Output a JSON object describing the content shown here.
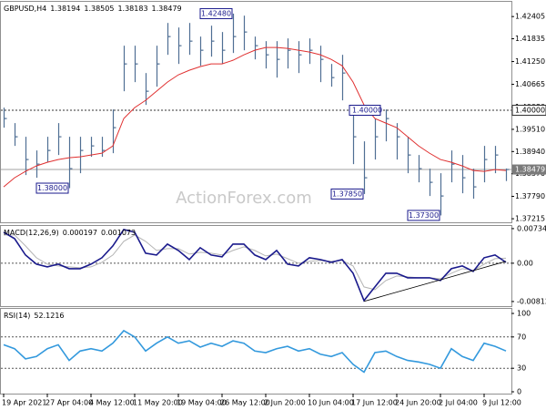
{
  "chart_data": [
    {
      "type": "hlc",
      "label": "GBPUSD,H4",
      "readout": [
        1.38194,
        1.38505,
        1.38183,
        1.38479
      ],
      "watermark": "ActionForex.com",
      "color": "#4f6f94",
      "ylim": [
        1.371,
        1.4283
      ],
      "yticks": [
        1.42405,
        1.41835,
        {
          "value": 1.4125,
          "label": "1.41250"
        },
        1.40665,
        {
          "value": 1.4008,
          "label": "1.40080"
        },
        {
          "value": 1.3951,
          "label": "1.39510"
        },
        {
          "value": 1.3894,
          "label": "1.38940"
        },
        {
          "value": 1.3837,
          "label": "1.38370"
        },
        {
          "value": 1.3779,
          "label": "1.37790"
        },
        1.37215
      ],
      "high": [
        1.40067,
        1.3967,
        1.39319,
        1.38968,
        1.39319,
        1.3967,
        1.39319,
        1.39319,
        1.39319,
        1.39319,
        1.4002,
        1.41657,
        1.41657,
        1.40955,
        1.41657,
        1.42241,
        1.42124,
        1.42241,
        1.41891,
        1.42171,
        1.42008,
        1.4248,
        1.42428,
        1.41891,
        1.41774,
        1.41774,
        1.41844,
        1.41774,
        1.41844,
        1.41657,
        1.41189,
        1.41423,
        1.4002,
        1.39202,
        1.39787,
        1.4002,
        1.3967,
        1.39319,
        1.38851,
        1.38501,
        1.38384,
        1.38968,
        1.38851,
        1.38501,
        1.39085,
        1.39085,
        1.38505
      ],
      "low": [
        1.39553,
        1.39085,
        1.38337,
        1.38267,
        1.38664,
        1.38851,
        1.38,
        1.38384,
        1.38805,
        1.38805,
        1.38898,
        1.40488,
        1.40722,
        1.40137,
        1.40605,
        1.41423,
        1.41189,
        1.41423,
        1.41142,
        1.41376,
        1.41189,
        1.4147,
        1.4154,
        1.41306,
        1.41072,
        1.40838,
        1.41072,
        1.40955,
        1.41189,
        1.40722,
        1.40605,
        1.40254,
        1.38617,
        1.3785,
        1.38735,
        1.39202,
        1.38735,
        1.38384,
        1.3815,
        1.37799,
        1.373,
        1.3815,
        1.37869,
        1.37729,
        1.3815,
        1.38384,
        1.38183
      ],
      "close": [
        1.39787,
        1.39319,
        1.38735,
        1.38617,
        1.38968,
        1.39319,
        1.38501,
        1.38968,
        1.39085,
        1.38968,
        1.39553,
        1.41189,
        1.41189,
        1.40488,
        1.41189,
        1.41891,
        1.41657,
        1.41774,
        1.4154,
        1.41774,
        1.4154,
        1.41891,
        1.42008,
        1.41657,
        1.41423,
        1.41306,
        1.4154,
        1.41423,
        1.4154,
        1.41306,
        1.40838,
        1.40955,
        1.39319,
        1.38267,
        1.39319,
        1.39787,
        1.39319,
        1.38851,
        1.38501,
        1.3815,
        1.37799,
        1.38617,
        1.38267,
        1.38033,
        1.38735,
        1.38851,
        1.38479
      ],
      "ma": {
        "color": "#e03030",
        "values": [
          1.38033,
          1.38267,
          1.38431,
          1.38571,
          1.38664,
          1.38735,
          1.38781,
          1.38805,
          1.38851,
          1.38898,
          1.39085,
          1.39787,
          1.40067,
          1.40254,
          1.40488,
          1.40722,
          1.40909,
          1.41026,
          1.41119,
          1.41189,
          1.41189,
          1.41283,
          1.41423,
          1.4154,
          1.4161,
          1.4161,
          1.41587,
          1.4154,
          1.41493,
          1.41423,
          1.41306,
          1.41142,
          1.40722,
          1.40137,
          1.39787,
          1.3967,
          1.39553,
          1.39319,
          1.39085,
          1.38898,
          1.38735,
          1.38664,
          1.38571,
          1.38454,
          1.38431,
          1.38477,
          1.38454
        ]
      },
      "hline": {
        "value": 1.4,
        "label": "1.40000"
      },
      "current": 1.38479,
      "annotations": [
        {
          "value": 1.4248,
          "label": "1.42480"
        },
        {
          "value": 1.38,
          "label": "1.38000"
        },
        {
          "value": 1.3785,
          "label": "1.37850"
        },
        {
          "value": 1.373,
          "label": "1.37300"
        }
      ]
    },
    {
      "type": "line",
      "label": "MACD(12,26,9)",
      "readout": [
        0.000197,
        0.001073
      ],
      "ylim": [
        -0.0093,
        0.0081
      ],
      "yticks": [
        0.007342,
        {
          "value": 0,
          "label": "0.00"
        },
        -0.008126
      ],
      "levels": [
        0
      ],
      "series": [
        {
          "color": "#1a1a8c",
          "values": [
            0.006576,
            0.005222,
            0.001741,
            -0.000193,
            -0.000774,
            -0.000193,
            -0.00116,
            -0.00116,
            -0.000193,
            0.00116,
            0.003675,
            0.007156,
            0.006576,
            0.002127,
            0.001741,
            0.004061,
            0.002708,
            0.000774,
            0.003288,
            0.001741,
            0.001354,
            0.004061,
            0.004061,
            0.001741,
            0.000774,
            0.002708,
            -0.000193,
            -0.00058,
            0.00116,
            0.000774,
            0.000193,
            0.000774,
            -0.002127,
            -0.007929,
            -0.005028,
            -0.002127,
            -0.002127,
            -0.003094,
            -0.003094,
            -0.003094,
            -0.003675,
            -0.00116,
            -0.00058,
            -0.001741,
            0.00116,
            0.001741,
            0.000197
          ]
        },
        {
          "color": "#b4b4b4",
          "values": [
            0.005995,
            0.005995,
            0.003675,
            0.00116,
            -0.000193,
            -0.00058,
            -0.000774,
            -0.000967,
            -0.000774,
            0.000193,
            0.001741,
            0.004642,
            0.005995,
            0.004642,
            0.002708,
            0.003094,
            0.003094,
            0.001934,
            0.002321,
            0.002127,
            0.001741,
            0.002708,
            0.003481,
            0.002708,
            0.001547,
            0.001934,
            0.000967,
            0,
            0.000387,
            0.00058,
            0.000387,
            0.00058,
            -0.00058,
            -0.005028,
            -0.005609,
            -0.003675,
            -0.002708,
            -0.002901,
            -0.003094,
            -0.003094,
            -0.003288,
            -0.002127,
            -0.00116,
            -0.001547,
            -0.000193,
            0.000967,
            0.001073
          ]
        }
      ],
      "trendline": {
        "color": "#000000",
        "values": [
          null,
          null,
          null,
          null,
          null,
          null,
          null,
          null,
          null,
          null,
          null,
          null,
          null,
          null,
          null,
          null,
          null,
          null,
          null,
          null,
          null,
          null,
          null,
          null,
          null,
          null,
          null,
          null,
          null,
          null,
          null,
          null,
          null,
          -0.0081,
          -0.00745,
          -0.00679,
          -0.00614,
          -0.00548,
          -0.00483,
          -0.00418,
          -0.00352,
          -0.00287,
          -0.00221,
          -0.00156,
          -0.00091,
          -0.00025,
          0.0004
        ]
      }
    },
    {
      "type": "line",
      "label": "RSI(14)",
      "readout": [
        52.1216
      ],
      "ylim": [
        -3.5,
        107
      ],
      "yticks": [
        100,
        70,
        30,
        0
      ],
      "levels": [
        70,
        30
      ],
      "series": [
        {
          "color": "#3399dd",
          "values": [
            60,
            55,
            42,
            45,
            55,
            60,
            40,
            52,
            55,
            52,
            62,
            78,
            70,
            52,
            62,
            70,
            62,
            65,
            57,
            62,
            58,
            65,
            62,
            52,
            50,
            55,
            58,
            52,
            55,
            48,
            45,
            50,
            35,
            25,
            50,
            52,
            45,
            40,
            38,
            35,
            30,
            55,
            45,
            40,
            62,
            58,
            52.1216
          ]
        }
      ],
      "categories": [
        "19 Apr 2021",
        null,
        null,
        null,
        "27 Apr 04:00",
        null,
        null,
        null,
        "4 May 12:00",
        null,
        null,
        null,
        "11 May 20:00",
        null,
        null,
        null,
        "19 May 04:00",
        null,
        null,
        null,
        "26 May 12:00",
        null,
        null,
        null,
        "2 Jun 20:00",
        null,
        null,
        null,
        "10 Jun 04:00",
        null,
        null,
        null,
        "17 Jun 12:00",
        null,
        null,
        null,
        "24 Jun 20:00",
        null,
        null,
        null,
        "2 Jul 04:00",
        null,
        null,
        null,
        "9 Jul 12:00",
        null,
        null
      ]
    }
  ]
}
